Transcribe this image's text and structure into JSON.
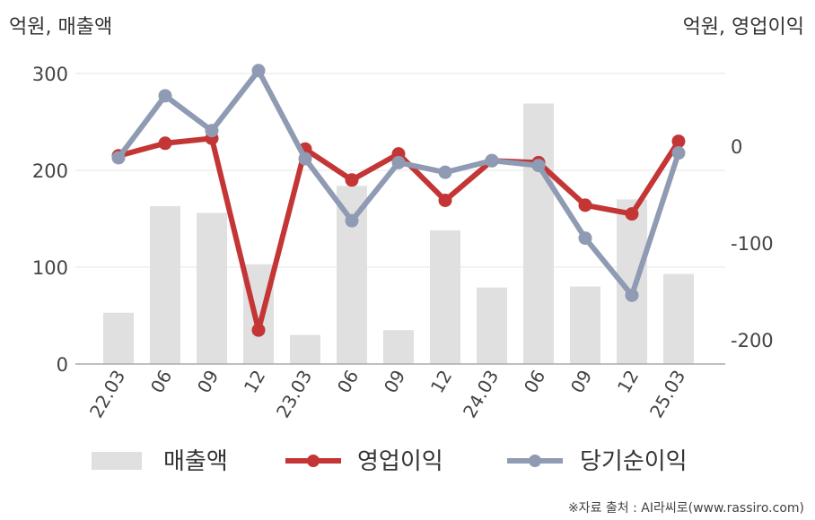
{
  "chart_data": {
    "type": "bar+line",
    "left_axis_label": "억원, 매출액",
    "right_axis_label": "억원, 영업이익",
    "categories": [
      "22.03",
      "06",
      "09",
      "12",
      "23.03",
      "06",
      "09",
      "12",
      "24.03",
      "06",
      "09",
      "12",
      "25.03"
    ],
    "left_axis": {
      "ticks": [
        0,
        100,
        200,
        300
      ],
      "ylim": [
        0,
        300
      ]
    },
    "right_axis": {
      "ticks": [
        0,
        -100,
        -200
      ],
      "ylim": [
        -225,
        75
      ]
    },
    "series": [
      {
        "name": "매출액",
        "type": "bar",
        "axis": "left",
        "color": "#e0e0e0",
        "values": [
          53,
          163,
          156,
          103,
          30,
          184,
          35,
          138,
          79,
          269,
          80,
          170,
          93
        ]
      },
      {
        "name": "영업이익",
        "type": "line",
        "axis": "right",
        "color": "#c43535",
        "values": [
          -10,
          3,
          8,
          -190,
          -3,
          -35,
          -8,
          -56,
          -15,
          -17,
          -61,
          -70,
          5
        ]
      },
      {
        "name": "당기순이익",
        "type": "line",
        "axis": "right",
        "color": "#8f9ab3",
        "values": [
          -12,
          52,
          16,
          78,
          -13,
          -77,
          -17,
          -27,
          -15,
          -20,
          -95,
          -154,
          -7
        ]
      }
    ],
    "grid": true,
    "legend_position": "bottom"
  },
  "source": "※자료 출처 : AI라씨로(www.rassiro.com)"
}
